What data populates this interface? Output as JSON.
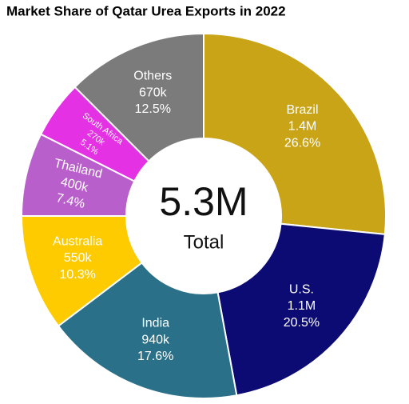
{
  "chart_data": {
    "type": "donut",
    "title": "Market Share of Qatar Urea Exports in 2022",
    "categories": [
      "Brazil",
      "U.S.",
      "India",
      "Australia",
      "Thailand",
      "South Africa",
      "Others"
    ],
    "values": [
      26.6,
      20.5,
      17.6,
      10.3,
      7.4,
      5.1,
      12.5
    ],
    "value_labels": [
      "26.6%",
      "20.5%",
      "17.6%",
      "10.3%",
      "7.4%",
      "5.1%",
      "12.5%"
    ],
    "amounts": [
      1400000,
      1100000,
      940000,
      550000,
      400000,
      270000,
      670000
    ],
    "amount_labels": [
      "1.4M",
      "1.1M",
      "940k",
      "550k",
      "400k",
      "270k",
      "670k"
    ],
    "colors": [
      "#c9a417",
      "#0b0b73",
      "#2a7088",
      "#fdcb00",
      "#b95fcb",
      "#e431e4",
      "#7b7b7b"
    ],
    "center_label": "5.3M",
    "center_sublabel": "Total"
  }
}
